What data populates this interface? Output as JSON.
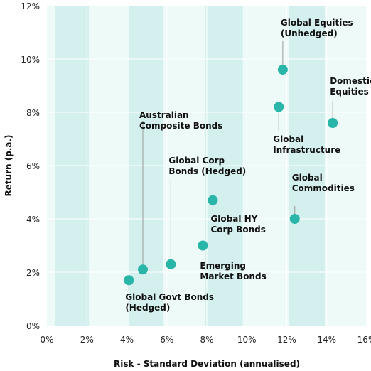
{
  "chart_data": {
    "type": "scatter",
    "title": "",
    "xlabel": "Risk - Standard Deviation (annualised)",
    "ylabel": "Return (p.a.)",
    "xlim": [
      0,
      16
    ],
    "ylim": [
      0,
      12
    ],
    "x_ticks": [
      {
        "value": 0,
        "label": "0%"
      },
      {
        "value": 2,
        "label": "2%"
      },
      {
        "value": 4,
        "label": "4%"
      },
      {
        "value": 6,
        "label": "6%"
      },
      {
        "value": 8,
        "label": "8%"
      },
      {
        "value": 10,
        "label": "10%"
      },
      {
        "value": 12,
        "label": "12%"
      },
      {
        "value": 14,
        "label": "14%"
      },
      {
        "value": 16,
        "label": "16%"
      }
    ],
    "y_ticks": [
      {
        "value": 0,
        "label": "0%"
      },
      {
        "value": 2,
        "label": "2%"
      },
      {
        "value": 4,
        "label": "4%"
      },
      {
        "value": 6,
        "label": "6%"
      },
      {
        "value": 8,
        "label": "8%"
      },
      {
        "value": 10,
        "label": "10%"
      },
      {
        "value": 12,
        "label": "12%"
      }
    ],
    "shaded_bands": [
      [
        0.4,
        2.1
      ],
      [
        4.1,
        5.8
      ],
      [
        7.9,
        9.8
      ],
      [
        12.1,
        13.9
      ]
    ],
    "colors": {
      "point": "#2ab5a9",
      "band": "#d4f0ee",
      "plot_bg": "#eefaf8",
      "grid": "#ffffff"
    },
    "points": [
      {
        "name": "Global Govt Bonds (Hedged)",
        "lines": [
          "Global Govt Bonds",
          "(Hedged)"
        ],
        "x": 4.1,
        "y": 1.7,
        "label_pos": "below"
      },
      {
        "name": "Australian Composite Bonds",
        "lines": [
          "Australian",
          "Composite Bonds"
        ],
        "x": 4.8,
        "y": 2.1,
        "label_pos": "above"
      },
      {
        "name": "Global Corp Bonds (Hedged)",
        "lines": [
          "Global Corp",
          "Bonds (Hedged)"
        ],
        "x": 6.2,
        "y": 2.3,
        "label_pos": "above"
      },
      {
        "name": "Emerging Market Bonds",
        "lines": [
          "Emerging",
          "Market Bonds"
        ],
        "x": 7.8,
        "y": 3.0,
        "label_pos": "below"
      },
      {
        "name": "Global HY Corp Bonds",
        "lines": [
          "Global HY",
          "Corp Bonds"
        ],
        "x": 8.3,
        "y": 4.7,
        "label_pos": "below"
      },
      {
        "name": "Global Commodities",
        "lines": [
          "Global",
          "Commodities"
        ],
        "x": 12.4,
        "y": 4.0,
        "label_pos": "above"
      },
      {
        "name": "Global Infrastructure",
        "lines": [
          "Global",
          "Infrastructure"
        ],
        "x": 11.6,
        "y": 8.2,
        "label_pos": "below"
      },
      {
        "name": "Global Equities (Unhedged)",
        "lines": [
          "Global Equities",
          "(Unhedged)"
        ],
        "x": 11.8,
        "y": 9.6,
        "label_pos": "above"
      },
      {
        "name": "Domestic Equities",
        "lines": [
          "Domestic",
          "Equities"
        ],
        "x": 14.3,
        "y": 7.6,
        "label_pos": "above"
      }
    ]
  }
}
